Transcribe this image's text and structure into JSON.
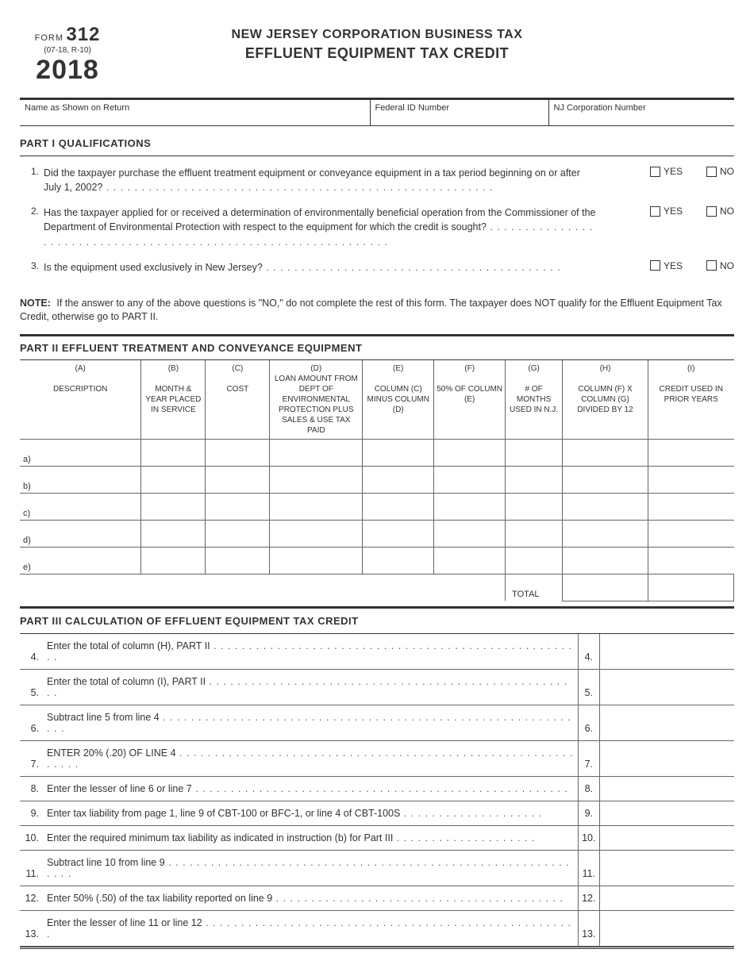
{
  "header": {
    "form_word": "FORM",
    "form_number": "312",
    "revision": "(07-18, R-10)",
    "year": "2018",
    "title_line1": "NEW JERSEY CORPORATION BUSINESS TAX",
    "title_line2": "EFFLUENT EQUIPMENT TAX CREDIT"
  },
  "id_fields": {
    "name_label": "Name as Shown on Return",
    "fed_label": "Federal ID Number",
    "nj_label": "NJ Corporation Number"
  },
  "part1": {
    "heading": "PART  I   QUALIFICATIONS",
    "yes": "YES",
    "no": "NO",
    "q1_num": "1.",
    "q1": "Did the taxpayer purchase the effluent treatment equipment or conveyance equipment in a tax period beginning on or after July 1, 2002?",
    "q2_num": "2.",
    "q2": "Has the taxpayer applied for or received a determination of environmentally beneficial operation from the Commissioner of the Department of Environmental Protection with respect to the equipment for which the credit is sought?",
    "q3_num": "3.",
    "q3": "Is the equipment used exclusively in New Jersey?",
    "note_bold": "NOTE:",
    "note": "If the answer to any of the above questions is \"NO,\" do not complete the rest of this form.  The taxpayer does NOT qualify for the Effluent Equipment Tax Credit, otherwise go to PART II."
  },
  "part2": {
    "heading": "PART  II     EFFLUENT TREATMENT AND CONVEYANCE EQUIPMENT",
    "cols": {
      "A_l": "(A)",
      "A": "DESCRIPTION",
      "B_l": "(B)",
      "B": "MONTH & YEAR PLACED IN SERVICE",
      "C_l": "(C)",
      "C": "COST",
      "D_l": "(D)",
      "D": "LOAN AMOUNT FROM DEPT OF ENVIRONMENTAL PROTECTION PLUS SALES & USE TAX PAID",
      "E_l": "(E)",
      "E": "COLUMN  (C) MINUS COLUMN  (D)",
      "F_l": "(F)",
      "F": "50% OF COLUMN  (E)",
      "G_l": "(G)",
      "G": "# OF MONTHS USED IN N.J.",
      "H_l": "(H)",
      "H": "COLUMN  (F) X COLUMN  (G) DIVIDED BY 12",
      "I_l": "(I)",
      "I": "CREDIT USED IN PRIOR YEARS"
    },
    "rows": [
      "a)",
      "b)",
      "c)",
      "d)",
      "e)"
    ],
    "total": "TOTAL"
  },
  "part3": {
    "heading": "PART  III    CALCULATION OF EFFLUENT EQUIPMENT TAX CREDIT",
    "lines": [
      {
        "n": "4.",
        "t": "Enter the total of column (H), PART II",
        "r": "4."
      },
      {
        "n": "5.",
        "t": "Enter the total of column (I), PART II",
        "r": "5."
      },
      {
        "n": "6.",
        "t": "Subtract line 5 from line 4",
        "r": "6."
      },
      {
        "n": "7.",
        "t": "ENTER 20% (.20) OF LINE 4",
        "r": "7."
      },
      {
        "n": "8.",
        "t": "Enter the lesser of line 6 or line 7",
        "r": "8."
      },
      {
        "n": "9.",
        "t": "Enter tax liability from page 1, line 9 of CBT-100 or BFC-1, or line 4 of CBT-100S",
        "r": "9."
      },
      {
        "n": "10.",
        "t": "Enter the required minimum tax liability as indicated in instruction (b) for Part III",
        "r": "10."
      },
      {
        "n": "11.",
        "t": "Subtract line 10 from line 9",
        "r": "11."
      },
      {
        "n": "12.",
        "t": "Enter 50% (.50) of the tax liability reported on line 9",
        "r": "12."
      },
      {
        "n": "13.",
        "t": "Enter the lesser of line 11 or line 12",
        "r": "13."
      }
    ]
  },
  "dots": {
    "long": " . . . . . . . . . . . . . . . . . . . . . . . . . . . . . . . . . . . . . . . . . . . . . . . . . . . . . . .",
    "med": " . . . . . . . . . . . . . . . . . . . . . . . . . . . . . . . . . . . . . . . . . . . . . . . . . . . . . . . . . . . . . . . .",
    "short": " . . . . . . . . . . . . . . . . . . . . . . . . . . . . . . . . . . . . . . . . . .",
    "p3": " . . . . . . . . . . . . . . . . . . . . . . . . . . . . . . . . . . . . . . . . . . . . . . . . . . . . .",
    "p3b": " . . . . . . . . . . . . . . . . . . . . . . . . . . . . . . . . . . . . . . . . . . . . . . . . . . . . . . . . . . . . .",
    "p3c": " . . . . . . . . . . . . . . . . . . . .",
    "p3d": " . . . . . . . . . . . . . . . . . . . . . . . . . . . . . . . . . . . . . . . . ."
  }
}
